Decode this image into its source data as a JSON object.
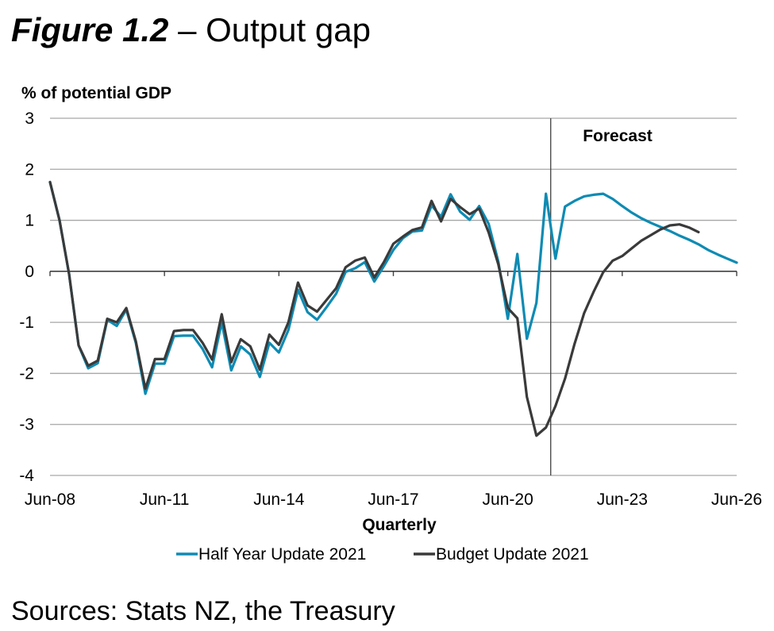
{
  "figure": {
    "number": "Figure 1.2",
    "separator": " – ",
    "title": "Output gap"
  },
  "sources": "Sources: Stats NZ, the Treasury",
  "chart_data": {
    "type": "line",
    "title": "Output gap",
    "ylabel": "% of potential GDP",
    "xlabel": "Quarterly",
    "ylim": [
      -4,
      3
    ],
    "yticks": [
      3,
      2,
      1,
      0,
      -1,
      -2,
      -3,
      -4
    ],
    "x_start": "Jun-08",
    "x_end": "Jun-26",
    "x_frequency": "quarterly",
    "xtick_labels": [
      "Jun-08",
      "Jun-11",
      "Jun-14",
      "Jun-17",
      "Jun-20",
      "Jun-23",
      "Jun-26"
    ],
    "xtick_every_quarters": 12,
    "grid": "horizontal",
    "annotation": {
      "text": "Forecast",
      "at_quarter_index": 52.5
    },
    "legend_position": "bottom",
    "colors": {
      "half_year": "#0E8BB3",
      "budget": "#3A3A3A"
    },
    "series": [
      {
        "name": "Half Year Update 2021",
        "color": "#0E8BB3",
        "values": [
          1.75,
          1.0,
          -0.05,
          -1.45,
          -1.9,
          -1.8,
          -0.95,
          -1.07,
          -0.75,
          -1.4,
          -2.4,
          -1.81,
          -1.81,
          -1.27,
          -1.26,
          -1.26,
          -1.52,
          -1.88,
          -1.0,
          -1.94,
          -1.47,
          -1.63,
          -2.07,
          -1.4,
          -1.59,
          -1.15,
          -0.36,
          -0.8,
          -0.95,
          -0.7,
          -0.44,
          -0.01,
          0.06,
          0.18,
          -0.2,
          0.1,
          0.42,
          0.65,
          0.78,
          0.8,
          1.29,
          1.07,
          1.51,
          1.17,
          1.01,
          1.28,
          0.93,
          0.19,
          -0.93,
          0.34,
          -1.32,
          -0.62,
          1.52,
          0.25,
          1.27,
          1.38,
          1.47,
          1.5,
          1.52,
          1.42,
          1.28,
          1.15,
          1.04,
          0.95,
          0.87,
          0.79,
          0.7,
          0.62,
          0.53,
          0.42,
          0.33,
          0.25,
          0.17
        ]
      },
      {
        "name": "Budget Update 2021",
        "color": "#3A3A3A",
        "values": [
          1.75,
          1.0,
          -0.05,
          -1.45,
          -1.85,
          -1.75,
          -0.93,
          -1.0,
          -0.72,
          -1.37,
          -2.3,
          -1.72,
          -1.72,
          -1.17,
          -1.15,
          -1.15,
          -1.4,
          -1.73,
          -0.84,
          -1.78,
          -1.33,
          -1.47,
          -1.93,
          -1.24,
          -1.44,
          -1.0,
          -0.22,
          -0.67,
          -0.79,
          -0.56,
          -0.33,
          0.08,
          0.21,
          0.27,
          -0.12,
          0.18,
          0.54,
          0.68,
          0.81,
          0.86,
          1.38,
          0.98,
          1.42,
          1.26,
          1.12,
          1.23,
          0.76,
          0.14,
          -0.72,
          -0.92,
          -2.46,
          -3.22,
          -3.06,
          -2.64,
          -2.1,
          -1.42,
          -0.82,
          -0.4,
          -0.02,
          0.21,
          0.3,
          0.45,
          0.6,
          0.71,
          0.82,
          0.9,
          0.92,
          0.86,
          0.77
        ]
      }
    ]
  }
}
